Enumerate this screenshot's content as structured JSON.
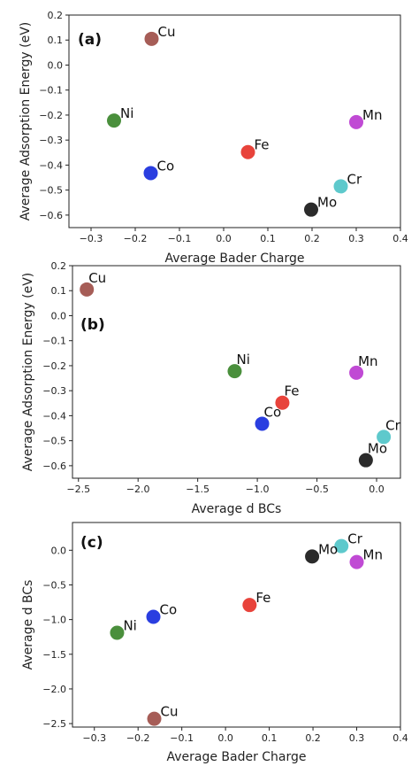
{
  "chart_data": [
    {
      "type": "scatter",
      "panel_label": "(a)",
      "xlabel": "Average Bader Charge",
      "ylabel": "Average Adsorption Energy (eV)",
      "xlim": [
        -0.35,
        0.4
      ],
      "ylim": [
        -0.65,
        0.2
      ],
      "xticks": [
        -0.3,
        -0.2,
        -0.1,
        0.0,
        0.1,
        0.2,
        0.3,
        0.4
      ],
      "xtick_labels": [
        "−0.3",
        "−0.2",
        "−0.1",
        "0.0",
        "0.1",
        "0.2",
        "0.3",
        "0.4"
      ],
      "yticks": [
        0.2,
        0.1,
        0.0,
        -0.1,
        -0.2,
        -0.3,
        -0.4,
        -0.5,
        -0.6
      ],
      "ytick_labels": [
        "0.2",
        "0.1",
        "0.0",
        "−0.1",
        "−0.2",
        "−0.3",
        "−0.4",
        "−0.5",
        "−0.6"
      ],
      "points": [
        {
          "label": "Cu",
          "x": -0.163,
          "y": 0.105,
          "color": "#a65d57"
        },
        {
          "label": "Ni",
          "x": -0.248,
          "y": -0.222,
          "color": "#4a8f3c"
        },
        {
          "label": "Co",
          "x": -0.165,
          "y": -0.432,
          "color": "#2a3ee0"
        },
        {
          "label": "Fe",
          "x": 0.055,
          "y": -0.348,
          "color": "#e8433b"
        },
        {
          "label": "Mn",
          "x": 0.3,
          "y": -0.228,
          "color": "#c04ad4"
        },
        {
          "label": "Cr",
          "x": 0.265,
          "y": -0.485,
          "color": "#5ec9cc"
        },
        {
          "label": "Mo",
          "x": 0.198,
          "y": -0.578,
          "color": "#2b2b2b"
        }
      ]
    },
    {
      "type": "scatter",
      "panel_label": "(b)",
      "xlabel": "Average d BCs",
      "ylabel": "Average Adsorption Energy (eV)",
      "xlim": [
        -2.55,
        0.2
      ],
      "ylim": [
        -0.65,
        0.2
      ],
      "xticks": [
        -2.5,
        -2.0,
        -1.5,
        -1.0,
        -0.5,
        0.0
      ],
      "xtick_labels": [
        "−2.5",
        "−2.0",
        "−1.5",
        "−1.0",
        "−0.5",
        "0.0"
      ],
      "yticks": [
        0.2,
        0.1,
        0.0,
        -0.1,
        -0.2,
        -0.3,
        -0.4,
        -0.5,
        -0.6
      ],
      "ytick_labels": [
        "0.2",
        "0.1",
        "0.0",
        "−0.1",
        "−0.2",
        "−0.3",
        "−0.4",
        "−0.5",
        "−0.6"
      ],
      "points": [
        {
          "label": "Cu",
          "x": -2.43,
          "y": 0.105,
          "color": "#a65d57"
        },
        {
          "label": "Ni",
          "x": -1.19,
          "y": -0.222,
          "color": "#4a8f3c"
        },
        {
          "label": "Co",
          "x": -0.96,
          "y": -0.432,
          "color": "#2a3ee0"
        },
        {
          "label": "Fe",
          "x": -0.79,
          "y": -0.348,
          "color": "#e8433b"
        },
        {
          "label": "Mn",
          "x": -0.17,
          "y": -0.228,
          "color": "#c04ad4"
        },
        {
          "label": "Cr",
          "x": 0.06,
          "y": -0.485,
          "color": "#5ec9cc"
        },
        {
          "label": "Mo",
          "x": -0.09,
          "y": -0.578,
          "color": "#2b2b2b"
        }
      ]
    },
    {
      "type": "scatter",
      "panel_label": "(c)",
      "xlabel": "Average Bader Charge",
      "ylabel": "Average d BCs",
      "xlim": [
        -0.35,
        0.4
      ],
      "ylim": [
        -2.55,
        0.4
      ],
      "xticks": [
        -0.3,
        -0.2,
        -0.1,
        0.0,
        0.1,
        0.2,
        0.3,
        0.4
      ],
      "xtick_labels": [
        "−0.3",
        "−0.2",
        "−0.1",
        "0.0",
        "0.1",
        "0.2",
        "0.3",
        "0.4"
      ],
      "yticks": [
        0.0,
        -0.5,
        -1.0,
        -1.5,
        -2.0,
        -2.5
      ],
      "ytick_labels": [
        "0.0",
        "−0.5",
        "−1.0",
        "−1.5",
        "−2.0",
        "−2.5"
      ],
      "points": [
        {
          "label": "Cu",
          "x": -0.163,
          "y": -2.43,
          "color": "#a65d57"
        },
        {
          "label": "Ni",
          "x": -0.248,
          "y": -1.19,
          "color": "#4a8f3c"
        },
        {
          "label": "Co",
          "x": -0.165,
          "y": -0.96,
          "color": "#2a3ee0"
        },
        {
          "label": "Fe",
          "x": 0.055,
          "y": -0.79,
          "color": "#e8433b"
        },
        {
          "label": "Mn",
          "x": 0.3,
          "y": -0.17,
          "color": "#c04ad4"
        },
        {
          "label": "Cr",
          "x": 0.265,
          "y": 0.06,
          "color": "#5ec9cc"
        },
        {
          "label": "Mo",
          "x": 0.198,
          "y": -0.09,
          "color": "#2b2b2b"
        }
      ]
    }
  ]
}
